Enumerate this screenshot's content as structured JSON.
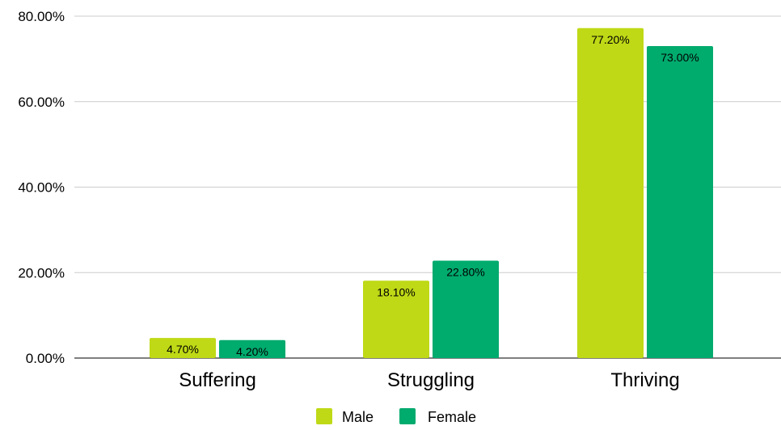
{
  "chart_data": {
    "type": "bar",
    "title": "",
    "xlabel": "",
    "ylabel": "",
    "categories": [
      "Suffering",
      "Struggling",
      "Thriving"
    ],
    "series": [
      {
        "name": "Male",
        "color": "#bfd916",
        "values": [
          4.7,
          18.1,
          77.2
        ],
        "labels": [
          "4.70%",
          "18.10%",
          "77.20%"
        ]
      },
      {
        "name": "Female",
        "color": "#00ab6e",
        "values": [
          4.2,
          22.8,
          73.0
        ],
        "labels": [
          "4.20%",
          "22.80%",
          "73.00%"
        ]
      }
    ],
    "ylim": [
      0,
      80
    ],
    "yticks": [
      0,
      20,
      40,
      60,
      80
    ],
    "ytick_labels": [
      "0.00%",
      "20.00%",
      "40.00%",
      "60.00%",
      "80.00%"
    ],
    "grid": true,
    "legend_position": "bottom"
  }
}
